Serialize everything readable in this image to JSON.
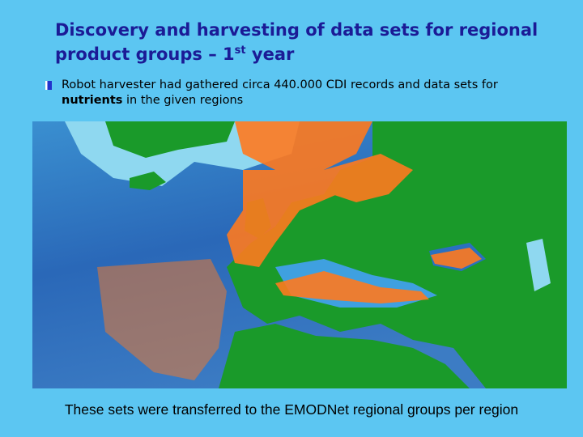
{
  "title": {
    "main": "Discovery and harvesting of data sets for regional product groups – 1",
    "superscript": "st",
    "end": " year"
  },
  "bullet": {
    "before": "Robot harvester had gathered circa 440.000 CDI records and data sets for ",
    "bold": "nutrients",
    "after": " in the given regions"
  },
  "caption": "These sets were transferred to the EMODNet regional groups per region"
}
